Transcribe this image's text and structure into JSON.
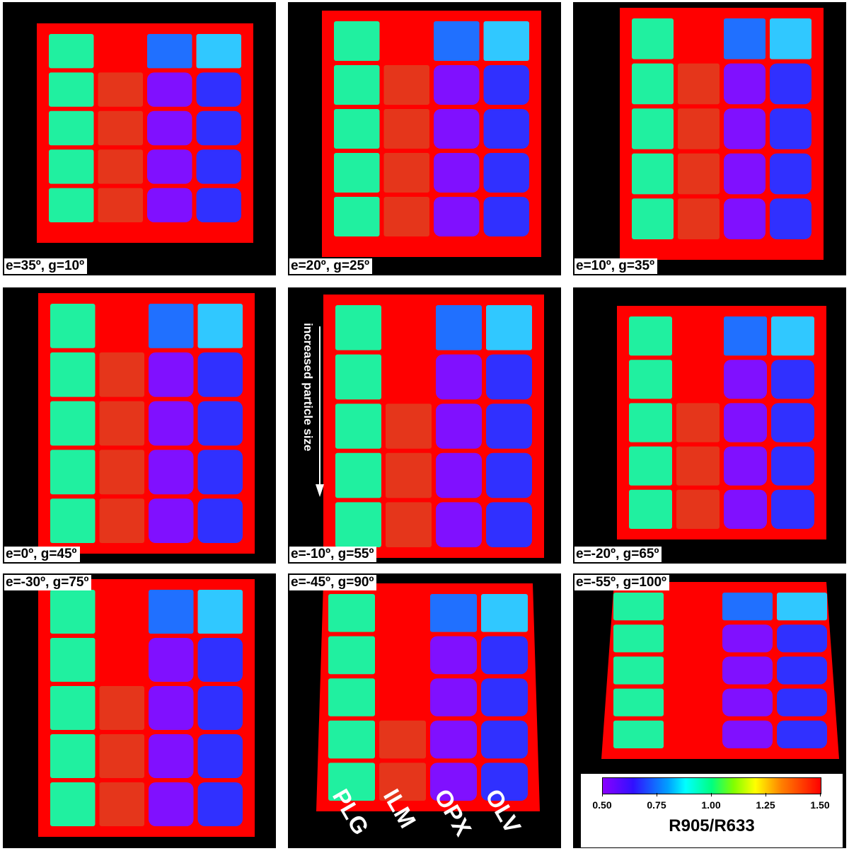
{
  "panels": [
    {
      "caption": "e=35º, g=10º",
      "caption_pos": "bottom"
    },
    {
      "caption": "e=20º, g=25º",
      "caption_pos": "bottom"
    },
    {
      "caption": "e=10º, g=35º",
      "caption_pos": "bottom"
    },
    {
      "caption": "e=0º, g=45º",
      "caption_pos": "bottom"
    },
    {
      "caption": "e=-10º, g=55º",
      "caption_pos": "bottom"
    },
    {
      "caption": "e=-20º, g=65º",
      "caption_pos": "bottom"
    },
    {
      "caption": "e=-30º, g=75º",
      "caption_pos": "top"
    },
    {
      "caption": "e=-45º, g=90º",
      "caption_pos": "top"
    },
    {
      "caption": "e=-55º, g=100º",
      "caption_pos": "top"
    }
  ],
  "arrow_label": "increased particle size",
  "column_labels": [
    "PLG",
    "ILM",
    "OPX",
    "OLV"
  ],
  "colorbar": {
    "title": "R905/R633",
    "ticks": [
      "0.50",
      "0.75",
      "1.00",
      "1.25",
      "1.50"
    ],
    "min": 0.5,
    "max": 1.5
  },
  "colors": {
    "background": "#000000",
    "frame": "#ff0000",
    "plg": "#20f0a0",
    "ilm": "#e04020",
    "opx_fine": "#2070ff",
    "opx": "#8010ff",
    "olv_fine": "#30c8ff",
    "olv": "#3030ff"
  }
}
